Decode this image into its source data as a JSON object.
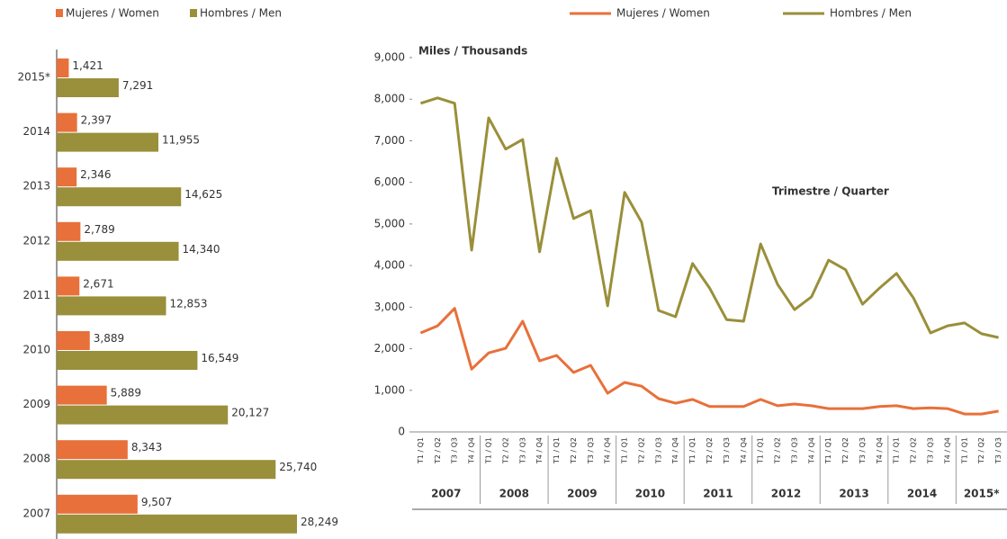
{
  "chart_data": [
    {
      "type": "hbar",
      "categories": [
        "2015*",
        "2014",
        "2013",
        "2012",
        "2011",
        "2010",
        "2009",
        "2008",
        "2007"
      ],
      "series": [
        {
          "name": "Mujeres / Women",
          "color": "#e8703a",
          "values": [
            1421,
            2397,
            2346,
            2789,
            2671,
            3889,
            5889,
            8343,
            9507
          ],
          "value_labels": [
            "1,421",
            "2,397",
            "2,346",
            "2,789",
            "2,671",
            "3,889",
            "5,889",
            "8,343",
            "9,507"
          ]
        },
        {
          "name": "Hombres / Men",
          "color": "#9a8f3a",
          "values": [
            7291,
            11955,
            14625,
            14340,
            12853,
            16549,
            20127,
            25740,
            28249
          ],
          "value_labels": [
            "7,291",
            "11,955",
            "14,625",
            "14,340",
            "12,853",
            "16,549",
            "20,127",
            "25,740",
            "28,249"
          ]
        }
      ]
    },
    {
      "type": "line",
      "y_axis_label": "Miles / Thousands",
      "annotation": "Trimestre / Quarter",
      "categories": [
        "T1 / Q1",
        "T2 / Q2",
        "T3 / Q3",
        "T4 / Q4",
        "T1 / Q1",
        "T2 / Q2",
        "T3 / Q3",
        "T4 / Q4",
        "T1 / Q1",
        "T2 / Q2",
        "T3 / Q3",
        "T4 / Q4",
        "T1 / Q1",
        "T2 / Q2",
        "T3 / Q3",
        "T4 / Q4",
        "T1 / Q1",
        "T2 / Q2",
        "T3 / Q3",
        "T4 / Q4",
        "T1 / Q1",
        "T2 / Q2",
        "T3 / Q3",
        "T4 / Q4",
        "T1 / Q1",
        "T2 / Q2",
        "T3 / Q3",
        "T4 / Q4",
        "T1 / Q1",
        "T2 / Q2",
        "T3 / Q3",
        "T4 / Q4",
        "T1 / Q1",
        "T2 / Q2",
        "T3 / Q3"
      ],
      "year_labels": [
        "2007",
        "2008",
        "2009",
        "2010",
        "2011",
        "2012",
        "2013",
        "2014",
        "2015*"
      ],
      "series": [
        {
          "name": "Mujeres / Women",
          "color": "#e8703a",
          "values": [
            2380,
            2550,
            2970,
            1510,
            1900,
            2010,
            2660,
            1710,
            1840,
            1430,
            1600,
            930,
            1190,
            1100,
            800,
            690,
            780,
            610,
            610,
            610,
            780,
            630,
            670,
            630,
            560,
            560,
            560,
            610,
            630,
            560,
            580,
            560,
            430,
            430,
            500
          ]
        },
        {
          "name": "Hombres / Men",
          "color": "#9a8f3a",
          "values": [
            7900,
            8030,
            7900,
            4370,
            7550,
            6800,
            7030,
            4330,
            6580,
            5130,
            5320,
            3030,
            5760,
            5040,
            2920,
            2770,
            4050,
            3460,
            2700,
            2660,
            4520,
            3550,
            2940,
            3250,
            4130,
            3900,
            3070,
            3460,
            3810,
            3220,
            2380,
            2550,
            2620,
            2360,
            2270
          ]
        }
      ],
      "ylim": [
        0,
        9000
      ],
      "yticks": [
        0,
        {
          "value": 1000,
          "label": "1,000"
        },
        {
          "value": 2000,
          "label": "2,000"
        },
        {
          "value": 3000,
          "label": "3,000"
        },
        {
          "value": 4000,
          "label": "4,000"
        },
        {
          "value": 5000,
          "label": "5,000"
        },
        {
          "value": 6000,
          "label": "6,000"
        },
        {
          "value": 7000,
          "label": "7,000"
        },
        {
          "value": 8000,
          "label": "8,000"
        },
        {
          "value": 9000,
          "label": "9,000"
        }
      ]
    }
  ]
}
